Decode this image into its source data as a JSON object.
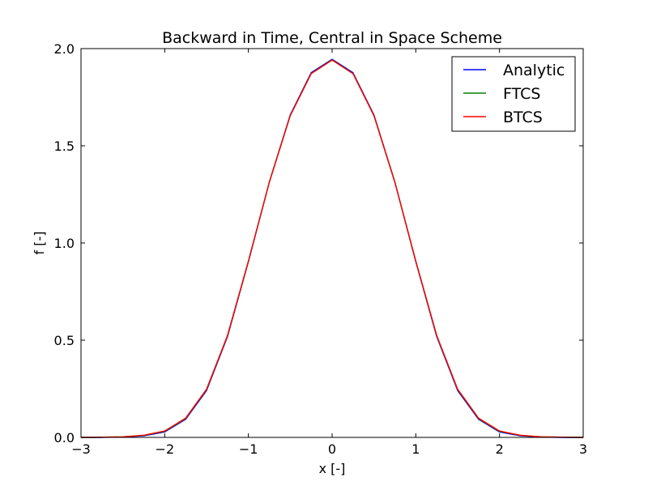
{
  "chart_data": {
    "type": "line",
    "title": "Backward in Time, Central in Space Scheme",
    "xlabel": "x [-]",
    "ylabel": "f [-]",
    "xlim": [
      -3,
      3
    ],
    "ylim": [
      0,
      2
    ],
    "xticks": [
      -3,
      -2,
      -1,
      0,
      1,
      2,
      3
    ],
    "xtick_labels": [
      "−3",
      "−2",
      "−1",
      "0",
      "1",
      "2",
      "3"
    ],
    "yticks": [
      0,
      0.5,
      1,
      1.5,
      2
    ],
    "ytick_labels": [
      "0.0",
      "0.5",
      "1.0",
      "1.5",
      "2.0"
    ],
    "grid": false,
    "legend_position": "top-right",
    "series": [
      {
        "name": "Analytic",
        "color": "#0000ff",
        "x": [
          -3.0,
          -2.75,
          -2.5,
          -2.25,
          -2.0,
          -1.75,
          -1.5,
          -1.25,
          -1.0,
          -0.75,
          -0.5,
          -0.25,
          0.0,
          0.25,
          0.5,
          0.75,
          1.0,
          1.25,
          1.5,
          1.75,
          2.0,
          2.25,
          2.5,
          2.75,
          3.0
        ],
        "y": [
          0.0,
          0.0,
          0.002,
          0.008,
          0.028,
          0.093,
          0.241,
          0.518,
          0.904,
          1.313,
          1.659,
          1.876,
          1.945,
          1.876,
          1.659,
          1.313,
          0.904,
          0.518,
          0.241,
          0.093,
          0.028,
          0.008,
          0.002,
          0.0,
          0.0
        ]
      },
      {
        "name": "FTCS",
        "color": "#008000",
        "x": [
          -3.0,
          -2.75,
          -2.5,
          -2.25,
          -2.0,
          -1.75,
          -1.5,
          -1.25,
          -1.0,
          -0.75,
          -0.5,
          -0.25,
          0.0,
          0.25,
          0.5,
          0.75,
          1.0,
          1.25,
          1.5,
          1.75,
          2.0,
          2.25,
          2.5,
          2.75,
          3.0
        ],
        "y": [
          0.0,
          0.001,
          0.003,
          0.01,
          0.031,
          0.097,
          0.246,
          0.522,
          0.906,
          1.313,
          1.656,
          1.872,
          1.942,
          1.872,
          1.656,
          1.313,
          0.906,
          0.522,
          0.246,
          0.097,
          0.031,
          0.01,
          0.003,
          0.001,
          0.0
        ]
      },
      {
        "name": "BTCS",
        "color": "#ff0000",
        "x": [
          -3.0,
          -2.75,
          -2.5,
          -2.25,
          -2.0,
          -1.75,
          -1.5,
          -1.25,
          -1.0,
          -0.75,
          -0.5,
          -0.25,
          0.0,
          0.25,
          0.5,
          0.75,
          1.0,
          1.25,
          1.5,
          1.75,
          2.0,
          2.25,
          2.5,
          2.75,
          3.0
        ],
        "y": [
          0.0,
          0.001,
          0.003,
          0.011,
          0.033,
          0.099,
          0.248,
          0.524,
          0.907,
          1.313,
          1.655,
          1.871,
          1.941,
          1.871,
          1.655,
          1.313,
          0.907,
          0.524,
          0.248,
          0.099,
          0.033,
          0.011,
          0.003,
          0.001,
          0.0
        ]
      }
    ]
  }
}
